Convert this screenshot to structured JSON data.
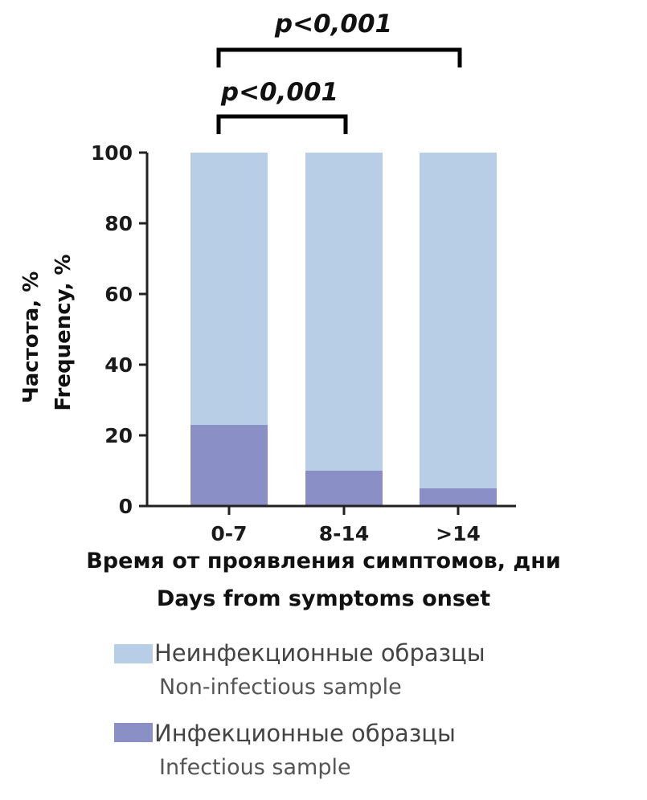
{
  "colors": {
    "non_infectious": "#b8cde6",
    "infectious": "#8a8fc5",
    "axis": "#222222"
  },
  "y_axis_label": {
    "ru": "Частота, %",
    "en": "Frequency, %"
  },
  "x_axis_label": {
    "ru": "Время от проявления симптомов, дни",
    "en": "Days from symptoms onset"
  },
  "significance": [
    {
      "from": "0-7",
      "to": ">14",
      "label": "p<0,001"
    },
    {
      "from": "0-7",
      "to": "8-14",
      "label": "p<0,001"
    }
  ],
  "legend": [
    {
      "ru": "Неинфекционные образцы",
      "en": "Non-infectious sample",
      "color_key": "non_infectious"
    },
    {
      "ru": "Инфекционные образцы",
      "en": "Infectious sample",
      "color_key": "infectious"
    }
  ],
  "chart_data": {
    "type": "bar",
    "stacked": true,
    "categories": [
      "0-7",
      "8-14",
      ">14"
    ],
    "series": [
      {
        "name": "Инфекционные образцы / Infectious sample",
        "values": [
          23,
          10,
          5
        ]
      },
      {
        "name": "Неинфекционные образцы / Non-infectious sample",
        "values": [
          77,
          90,
          95
        ]
      }
    ],
    "ylim": [
      0,
      100
    ],
    "yticks": [
      0,
      20,
      40,
      60,
      80,
      100
    ],
    "grid": false,
    "legend_position": "bottom"
  }
}
